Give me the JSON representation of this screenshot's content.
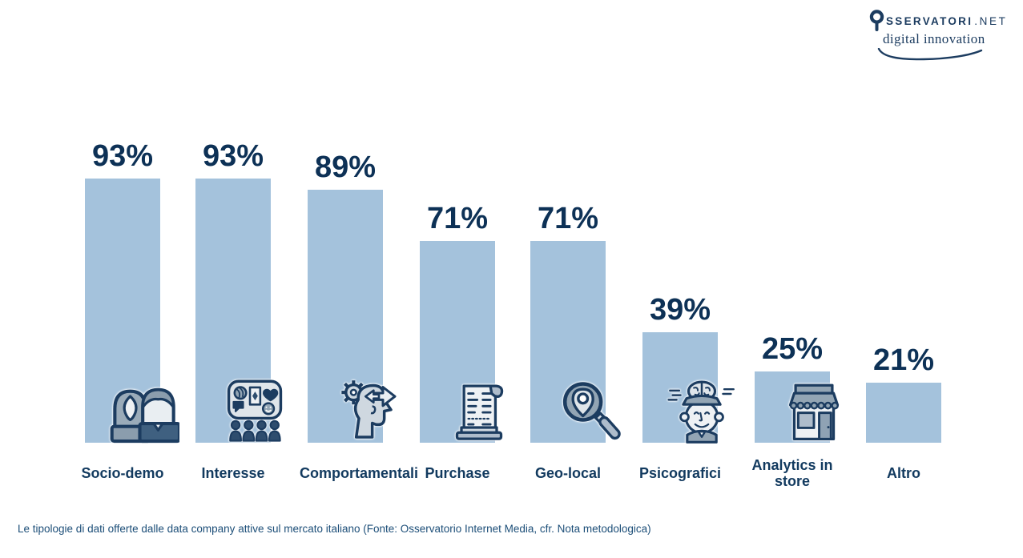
{
  "logo": {
    "brand_main": "SSERVATORI",
    "brand_suffix": ".NET",
    "brand_sub": "digital innovation"
  },
  "chart_data": {
    "type": "bar",
    "title": "",
    "categories": [
      "Socio-demo",
      "Interesse",
      "Comportamentali",
      "Purchase",
      "Geo-local",
      "Psicografici",
      "Analytics in store",
      "Altro"
    ],
    "values": [
      93,
      93,
      89,
      71,
      71,
      39,
      25,
      21
    ],
    "value_labels": [
      "93%",
      "93%",
      "89%",
      "71%",
      "71%",
      "39%",
      "25%",
      "21%"
    ],
    "unit": "%",
    "ylim": [
      0,
      100
    ],
    "grid": false,
    "legend": false,
    "bar_color": "#a4c2dc",
    "value_label_color": "#0d3156",
    "category_label_color": "#123a5f",
    "icons": [
      "two-people-icon",
      "interests-panel-icon",
      "head-gear-arrows-icon",
      "receipt-icon",
      "magnifier-pin-icon",
      "open-head-brain-icon",
      "storefront-icon",
      null
    ]
  },
  "caption": "Le tipologie di dati offerte dalle data company attive sul mercato italiano (Fonte: Osservatorio Internet Media, cfr. Nota metodologica)"
}
